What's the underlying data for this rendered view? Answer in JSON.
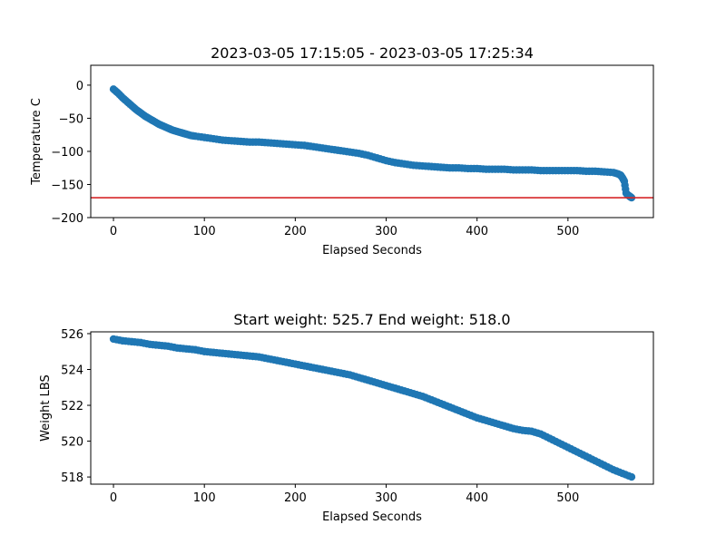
{
  "chart_data": [
    {
      "type": "scatter",
      "title": "2023-03-05 17:15:05 - 2023-03-05 17:25:34",
      "xlabel": "Elapsed Seconds",
      "ylabel": "Temperature C",
      "xlim": [
        -25,
        594
      ],
      "ylim": [
        -200,
        30
      ],
      "xticks": [
        0,
        100,
        200,
        300,
        400,
        500
      ],
      "yticks": [
        0,
        -50,
        -100,
        -150,
        -200
      ],
      "marker_color": "#1f77b4",
      "reference_line": {
        "y": -170,
        "color": "#d62728"
      },
      "series": [
        {
          "x": [
            0,
            5,
            10,
            15,
            20,
            25,
            30,
            35,
            40,
            45,
            50,
            55,
            60,
            65,
            70,
            75,
            80,
            85,
            90,
            100,
            110,
            120,
            130,
            140,
            150,
            160,
            170,
            180,
            190,
            200,
            210,
            220,
            230,
            240,
            250,
            260,
            270,
            280,
            290,
            300,
            310,
            320,
            330,
            340,
            350,
            360,
            370,
            380,
            390,
            400,
            410,
            420,
            430,
            440,
            450,
            460,
            470,
            480,
            490,
            500,
            510,
            520,
            530,
            540,
            550,
            555,
            558,
            560,
            562,
            564,
            566,
            568,
            570
          ],
          "y": [
            -6,
            -12,
            -19,
            -25,
            -31,
            -37,
            -42,
            -47,
            -51,
            -55,
            -59,
            -62,
            -65,
            -68,
            -70,
            -72,
            -74,
            -76,
            -77,
            -79,
            -81,
            -83,
            -84,
            -85,
            -86,
            -86,
            -87,
            -88,
            -89,
            -90,
            -91,
            -93,
            -95,
            -97,
            -99,
            -101,
            -103,
            -106,
            -110,
            -114,
            -117,
            -119,
            -121,
            -122,
            -123,
            -124,
            -125,
            -125,
            -126,
            -126,
            -127,
            -127,
            -127,
            -128,
            -128,
            -128,
            -129,
            -129,
            -129,
            -129,
            -129,
            -130,
            -130,
            -131,
            -132,
            -134,
            -136,
            -140,
            -145,
            -163,
            -166,
            -168,
            -170
          ]
        }
      ]
    },
    {
      "type": "scatter",
      "title": "Start weight: 525.7 End weight: 518.0",
      "xlabel": "Elapsed Seconds",
      "ylabel": "Weight LBS",
      "xlim": [
        -25,
        594
      ],
      "ylim": [
        517.6,
        526.1
      ],
      "xticks": [
        0,
        100,
        200,
        300,
        400,
        500
      ],
      "yticks": [
        526,
        524,
        522,
        520,
        518
      ],
      "marker_color": "#1f77b4",
      "series": [
        {
          "x": [
            0,
            10,
            20,
            30,
            40,
            50,
            60,
            70,
            80,
            90,
            100,
            110,
            120,
            130,
            140,
            150,
            160,
            170,
            180,
            190,
            200,
            210,
            220,
            230,
            240,
            250,
            260,
            270,
            280,
            290,
            300,
            310,
            320,
            330,
            340,
            350,
            360,
            370,
            380,
            390,
            400,
            410,
            420,
            430,
            440,
            450,
            460,
            470,
            480,
            490,
            500,
            510,
            520,
            530,
            540,
            550,
            560,
            570
          ],
          "y": [
            525.7,
            525.6,
            525.55,
            525.5,
            525.4,
            525.35,
            525.3,
            525.2,
            525.15,
            525.1,
            525.0,
            524.95,
            524.9,
            524.85,
            524.8,
            524.75,
            524.7,
            524.6,
            524.5,
            524.4,
            524.3,
            524.2,
            524.1,
            524.0,
            523.9,
            523.8,
            523.7,
            523.55,
            523.4,
            523.25,
            523.1,
            522.95,
            522.8,
            522.65,
            522.5,
            522.3,
            522.1,
            521.9,
            521.7,
            521.5,
            521.3,
            521.15,
            521.0,
            520.85,
            520.7,
            520.6,
            520.55,
            520.4,
            520.15,
            519.9,
            519.65,
            519.4,
            519.15,
            518.9,
            518.65,
            518.4,
            518.2,
            518.0
          ]
        }
      ]
    }
  ]
}
